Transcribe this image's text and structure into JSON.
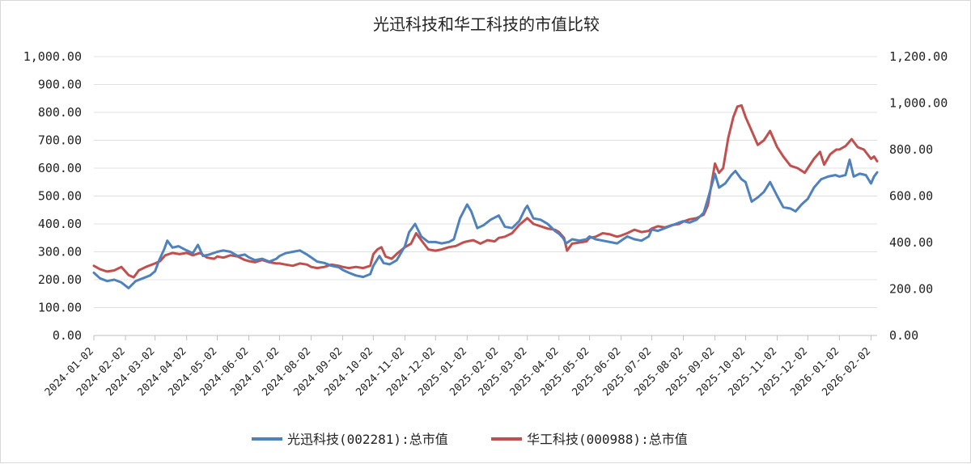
{
  "chart_data": {
    "type": "line",
    "title": "光迅科技和华工科技的市值比较",
    "x_ticks": [
      "2024-01-02",
      "2024-02-02",
      "2024-03-02",
      "2024-04-02",
      "2024-05-02",
      "2024-06-02",
      "2024-07-02",
      "2024-08-02",
      "2024-09-02",
      "2024-10-02",
      "2024-11-02",
      "2024-12-02",
      "2025-01-02",
      "2025-02-02",
      "2025-03-02",
      "2025-04-02",
      "2025-05-02",
      "2025-06-02",
      "2025-07-02",
      "2025-08-02",
      "2025-09-02",
      "2025-10-02",
      "2025-11-02",
      "2025-12-02",
      "2026-01-02",
      "2026-02-02"
    ],
    "y_left": {
      "ticks": [
        "0.00",
        "100.00",
        "200.00",
        "300.00",
        "400.00",
        "500.00",
        "600.00",
        "700.00",
        "800.00",
        "900.00",
        "1,000.00"
      ],
      "lim": [
        0,
        1000
      ]
    },
    "y_right": {
      "ticks": [
        "0.00",
        "200.00",
        "400.00",
        "600.00",
        "800.00",
        "1,000.00",
        "1,200.00"
      ],
      "lim": [
        0,
        1200
      ]
    },
    "grid": true,
    "legend_position": "bottom",
    "series": [
      {
        "name": "光迅科技(002281):总市值",
        "axis": "left",
        "color": "#4f81bd",
        "points": [
          [
            "2024-01-02",
            225
          ],
          [
            "2024-01-08",
            205
          ],
          [
            "2024-01-15",
            195
          ],
          [
            "2024-01-22",
            200
          ],
          [
            "2024-01-29",
            190
          ],
          [
            "2024-02-05",
            170
          ],
          [
            "2024-02-12",
            195
          ],
          [
            "2024-02-19",
            205
          ],
          [
            "2024-02-26",
            215
          ],
          [
            "2024-03-02",
            230
          ],
          [
            "2024-03-06",
            270
          ],
          [
            "2024-03-11",
            310
          ],
          [
            "2024-03-14",
            340
          ],
          [
            "2024-03-19",
            315
          ],
          [
            "2024-03-25",
            320
          ],
          [
            "2024-04-02",
            305
          ],
          [
            "2024-04-08",
            295
          ],
          [
            "2024-04-13",
            325
          ],
          [
            "2024-04-18",
            285
          ],
          [
            "2024-04-24",
            290
          ],
          [
            "2024-05-02",
            300
          ],
          [
            "2024-05-08",
            305
          ],
          [
            "2024-05-15",
            300
          ],
          [
            "2024-05-22",
            285
          ],
          [
            "2024-05-29",
            290
          ],
          [
            "2024-06-02",
            280
          ],
          [
            "2024-06-08",
            270
          ],
          [
            "2024-06-15",
            275
          ],
          [
            "2024-06-22",
            265
          ],
          [
            "2024-06-29",
            275
          ],
          [
            "2024-07-02",
            285
          ],
          [
            "2024-07-08",
            295
          ],
          [
            "2024-07-15",
            300
          ],
          [
            "2024-07-22",
            305
          ],
          [
            "2024-07-29",
            290
          ],
          [
            "2024-08-02",
            280
          ],
          [
            "2024-08-08",
            265
          ],
          [
            "2024-08-15",
            260
          ],
          [
            "2024-08-22",
            250
          ],
          [
            "2024-08-29",
            245
          ],
          [
            "2024-09-02",
            235
          ],
          [
            "2024-09-08",
            225
          ],
          [
            "2024-09-15",
            215
          ],
          [
            "2024-09-22",
            210
          ],
          [
            "2024-09-29",
            220
          ],
          [
            "2024-10-02",
            250
          ],
          [
            "2024-10-08",
            285
          ],
          [
            "2024-10-12",
            260
          ],
          [
            "2024-10-18",
            255
          ],
          [
            "2024-10-25",
            270
          ],
          [
            "2024-11-02",
            320
          ],
          [
            "2024-11-06",
            370
          ],
          [
            "2024-11-12",
            400
          ],
          [
            "2024-11-18",
            355
          ],
          [
            "2024-11-25",
            335
          ],
          [
            "2024-12-02",
            335
          ],
          [
            "2024-12-08",
            330
          ],
          [
            "2024-12-15",
            335
          ],
          [
            "2024-12-20",
            345
          ],
          [
            "2024-12-26",
            420
          ],
          [
            "2025-01-02",
            470
          ],
          [
            "2025-01-06",
            445
          ],
          [
            "2025-01-12",
            385
          ],
          [
            "2025-01-18",
            395
          ],
          [
            "2025-01-25",
            415
          ],
          [
            "2025-02-02",
            430
          ],
          [
            "2025-02-08",
            390
          ],
          [
            "2025-02-15",
            385
          ],
          [
            "2025-02-22",
            410
          ],
          [
            "2025-02-28",
            455
          ],
          [
            "2025-03-02",
            465
          ],
          [
            "2025-03-08",
            420
          ],
          [
            "2025-03-15",
            415
          ],
          [
            "2025-03-22",
            400
          ],
          [
            "2025-03-29",
            375
          ],
          [
            "2025-04-02",
            365
          ],
          [
            "2025-04-06",
            350
          ],
          [
            "2025-04-09",
            330
          ],
          [
            "2025-04-15",
            345
          ],
          [
            "2025-04-22",
            340
          ],
          [
            "2025-04-29",
            345
          ],
          [
            "2025-05-02",
            355
          ],
          [
            "2025-05-08",
            345
          ],
          [
            "2025-05-15",
            340
          ],
          [
            "2025-05-22",
            335
          ],
          [
            "2025-05-29",
            330
          ],
          [
            "2025-06-02",
            340
          ],
          [
            "2025-06-08",
            355
          ],
          [
            "2025-06-15",
            345
          ],
          [
            "2025-06-22",
            340
          ],
          [
            "2025-06-29",
            355
          ],
          [
            "2025-07-02",
            380
          ],
          [
            "2025-07-08",
            375
          ],
          [
            "2025-07-15",
            385
          ],
          [
            "2025-07-22",
            395
          ],
          [
            "2025-07-29",
            405
          ],
          [
            "2025-08-02",
            410
          ],
          [
            "2025-08-08",
            405
          ],
          [
            "2025-08-15",
            415
          ],
          [
            "2025-08-22",
            440
          ],
          [
            "2025-08-26",
            490
          ],
          [
            "2025-09-02",
            580
          ],
          [
            "2025-09-06",
            530
          ],
          [
            "2025-09-12",
            545
          ],
          [
            "2025-09-18",
            575
          ],
          [
            "2025-09-22",
            590
          ],
          [
            "2025-09-28",
            560
          ],
          [
            "2025-10-02",
            550
          ],
          [
            "2025-10-08",
            480
          ],
          [
            "2025-10-14",
            495
          ],
          [
            "2025-10-20",
            515
          ],
          [
            "2025-10-26",
            550
          ],
          [
            "2025-11-02",
            500
          ],
          [
            "2025-11-08",
            460
          ],
          [
            "2025-11-15",
            455
          ],
          [
            "2025-11-20",
            445
          ],
          [
            "2025-11-26",
            470
          ],
          [
            "2025-12-02",
            490
          ],
          [
            "2025-12-08",
            530
          ],
          [
            "2025-12-15",
            560
          ],
          [
            "2025-12-22",
            570
          ],
          [
            "2025-12-29",
            575
          ],
          [
            "2026-01-02",
            570
          ],
          [
            "2026-01-08",
            575
          ],
          [
            "2026-01-12",
            630
          ],
          [
            "2026-01-16",
            570
          ],
          [
            "2026-01-22",
            580
          ],
          [
            "2026-01-28",
            575
          ],
          [
            "2026-02-02",
            545
          ],
          [
            "2026-02-05",
            570
          ],
          [
            "2026-02-08",
            585
          ]
        ]
      },
      {
        "name": "华工科技(000988):总市值",
        "axis": "right",
        "color": "#c0504d",
        "points": [
          [
            "2024-01-02",
            300
          ],
          [
            "2024-01-08",
            285
          ],
          [
            "2024-01-15",
            275
          ],
          [
            "2024-01-22",
            280
          ],
          [
            "2024-01-29",
            295
          ],
          [
            "2024-02-05",
            260
          ],
          [
            "2024-02-10",
            250
          ],
          [
            "2024-02-15",
            280
          ],
          [
            "2024-02-22",
            295
          ],
          [
            "2024-03-02",
            310
          ],
          [
            "2024-03-07",
            320
          ],
          [
            "2024-03-12",
            345
          ],
          [
            "2024-03-19",
            355
          ],
          [
            "2024-03-26",
            350
          ],
          [
            "2024-04-02",
            355
          ],
          [
            "2024-04-08",
            345
          ],
          [
            "2024-04-15",
            355
          ],
          [
            "2024-04-22",
            335
          ],
          [
            "2024-04-29",
            330
          ],
          [
            "2024-05-02",
            340
          ],
          [
            "2024-05-08",
            335
          ],
          [
            "2024-05-15",
            345
          ],
          [
            "2024-05-22",
            340
          ],
          [
            "2024-05-29",
            325
          ],
          [
            "2024-06-02",
            320
          ],
          [
            "2024-06-08",
            315
          ],
          [
            "2024-06-15",
            325
          ],
          [
            "2024-06-22",
            315
          ],
          [
            "2024-06-29",
            310
          ],
          [
            "2024-07-02",
            310
          ],
          [
            "2024-07-08",
            305
          ],
          [
            "2024-07-15",
            300
          ],
          [
            "2024-07-22",
            310
          ],
          [
            "2024-07-29",
            305
          ],
          [
            "2024-08-02",
            295
          ],
          [
            "2024-08-08",
            290
          ],
          [
            "2024-08-15",
            295
          ],
          [
            "2024-08-22",
            305
          ],
          [
            "2024-08-29",
            300
          ],
          [
            "2024-09-02",
            295
          ],
          [
            "2024-09-08",
            290
          ],
          [
            "2024-09-15",
            295
          ],
          [
            "2024-09-22",
            290
          ],
          [
            "2024-09-29",
            300
          ],
          [
            "2024-10-02",
            350
          ],
          [
            "2024-10-06",
            370
          ],
          [
            "2024-10-10",
            380
          ],
          [
            "2024-10-14",
            340
          ],
          [
            "2024-10-20",
            330
          ],
          [
            "2024-10-26",
            355
          ],
          [
            "2024-11-02",
            380
          ],
          [
            "2024-11-08",
            395
          ],
          [
            "2024-11-13",
            440
          ],
          [
            "2024-11-18",
            410
          ],
          [
            "2024-11-25",
            370
          ],
          [
            "2024-12-02",
            365
          ],
          [
            "2024-12-08",
            370
          ],
          [
            "2024-12-15",
            380
          ],
          [
            "2024-12-22",
            385
          ],
          [
            "2024-12-29",
            400
          ],
          [
            "2025-01-02",
            405
          ],
          [
            "2025-01-08",
            410
          ],
          [
            "2025-01-15",
            395
          ],
          [
            "2025-01-22",
            410
          ],
          [
            "2025-01-29",
            405
          ],
          [
            "2025-02-02",
            420
          ],
          [
            "2025-02-08",
            425
          ],
          [
            "2025-02-15",
            440
          ],
          [
            "2025-02-22",
            475
          ],
          [
            "2025-03-02",
            505
          ],
          [
            "2025-03-08",
            480
          ],
          [
            "2025-03-15",
            470
          ],
          [
            "2025-03-22",
            460
          ],
          [
            "2025-03-29",
            455
          ],
          [
            "2025-04-02",
            445
          ],
          [
            "2025-04-07",
            420
          ],
          [
            "2025-04-10",
            365
          ],
          [
            "2025-04-15",
            395
          ],
          [
            "2025-04-22",
            400
          ],
          [
            "2025-04-29",
            405
          ],
          [
            "2025-05-02",
            420
          ],
          [
            "2025-05-08",
            425
          ],
          [
            "2025-05-15",
            440
          ],
          [
            "2025-05-22",
            435
          ],
          [
            "2025-05-29",
            425
          ],
          [
            "2025-06-02",
            430
          ],
          [
            "2025-06-08",
            440
          ],
          [
            "2025-06-15",
            455
          ],
          [
            "2025-06-22",
            445
          ],
          [
            "2025-06-29",
            450
          ],
          [
            "2025-07-02",
            460
          ],
          [
            "2025-07-08",
            470
          ],
          [
            "2025-07-15",
            465
          ],
          [
            "2025-07-22",
            475
          ],
          [
            "2025-07-29",
            480
          ],
          [
            "2025-08-02",
            490
          ],
          [
            "2025-08-08",
            500
          ],
          [
            "2025-08-15",
            505
          ],
          [
            "2025-08-22",
            520
          ],
          [
            "2025-08-26",
            560
          ],
          [
            "2025-09-02",
            740
          ],
          [
            "2025-09-06",
            700
          ],
          [
            "2025-09-10",
            720
          ],
          [
            "2025-09-15",
            850
          ],
          [
            "2025-09-20",
            940
          ],
          [
            "2025-09-24",
            985
          ],
          [
            "2025-09-28",
            990
          ],
          [
            "2025-10-02",
            940
          ],
          [
            "2025-10-08",
            880
          ],
          [
            "2025-10-14",
            820
          ],
          [
            "2025-10-20",
            840
          ],
          [
            "2025-10-26",
            880
          ],
          [
            "2025-11-02",
            810
          ],
          [
            "2025-11-08",
            770
          ],
          [
            "2025-11-15",
            730
          ],
          [
            "2025-11-22",
            720
          ],
          [
            "2025-11-29",
            700
          ],
          [
            "2025-12-02",
            720
          ],
          [
            "2025-12-08",
            760
          ],
          [
            "2025-12-14",
            790
          ],
          [
            "2025-12-18",
            735
          ],
          [
            "2025-12-24",
            780
          ],
          [
            "2025-12-30",
            800
          ],
          [
            "2026-01-02",
            800
          ],
          [
            "2026-01-08",
            815
          ],
          [
            "2026-01-14",
            845
          ],
          [
            "2026-01-20",
            810
          ],
          [
            "2026-01-26",
            800
          ],
          [
            "2026-02-02",
            760
          ],
          [
            "2026-02-05",
            770
          ],
          [
            "2026-02-08",
            750
          ]
        ]
      }
    ]
  }
}
